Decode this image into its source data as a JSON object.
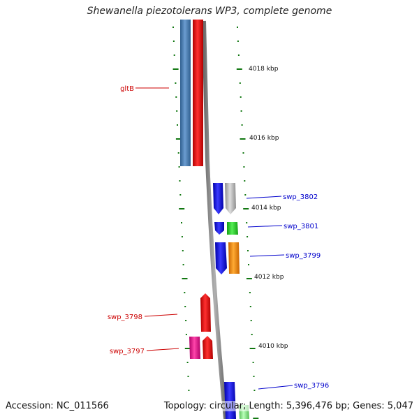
{
  "title": "Shewanella piezotolerans WP3, complete genome",
  "footer": {
    "accession": "Accession: NC_011566",
    "summary": "Topology: circular; Length: 5,396,476 bp; Genes: 5,047"
  },
  "scale_labels": [
    "4018 kbp",
    "4016 kbp",
    "4014 kbp",
    "4012 kbp",
    "4010 kbp"
  ],
  "gene_labels": {
    "left": [
      "gltB",
      "swp_3798",
      "swp_3797"
    ],
    "right": [
      "swp_3802",
      "swp_3801",
      "swp_3799",
      "swp_3796"
    ]
  },
  "colors": {
    "left_label": "#cc0000",
    "right_label": "#0000cc",
    "tick": "#117711",
    "backbone": "#808080",
    "cds_blue": "#1a1ae6",
    "cds_red": "#e81818",
    "cds_steel": "#4a7fb5",
    "cds_grey": "#bdbdbd",
    "cds_green": "#33cc33",
    "cds_orange": "#f08c1a",
    "cds_magenta": "#e6188c",
    "cds_lightgreen": "#66dd66"
  }
}
